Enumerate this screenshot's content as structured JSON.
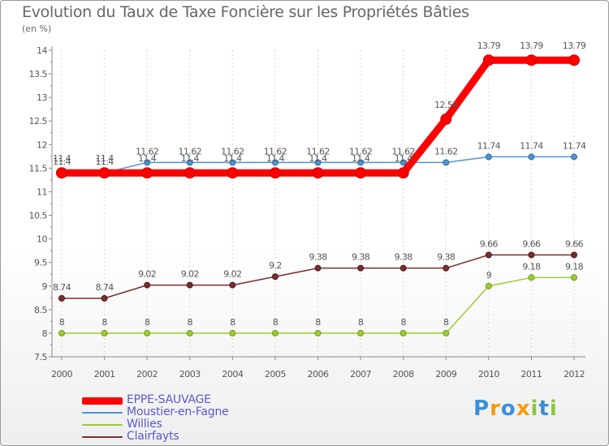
{
  "chart_data": {
    "type": "line",
    "title": "Evolution du Taux de Taxe Foncière sur les Propriétés Bâties",
    "subtitle": "(en %)",
    "xlabel": "",
    "ylabel": "",
    "ylim": [
      7.5,
      14
    ],
    "yticks": [
      "7.5",
      "8",
      "8.5",
      "9",
      "9.5",
      "10",
      "10.5",
      "11",
      "11.5",
      "12",
      "12.5",
      "13",
      "13.5",
      "14"
    ],
    "categories": [
      "2000",
      "2001",
      "2002",
      "2003",
      "2004",
      "2005",
      "2006",
      "2007",
      "2008",
      "2009",
      "2010",
      "2011",
      "2012"
    ],
    "series": [
      {
        "name": "EPPE-SAUVAGE",
        "color": "#ff0000",
        "values": [
          11.4,
          11.4,
          11.4,
          11.4,
          11.4,
          11.4,
          11.4,
          11.4,
          11.4,
          12.54,
          13.79,
          13.79,
          13.79
        ],
        "labels": [
          "11.4",
          "11.4",
          "11.4",
          "11.4",
          "11.4",
          "11.4",
          "11.4",
          "11.4",
          "11.4",
          "12.54",
          "13.79",
          "13.79",
          "13.79"
        ]
      },
      {
        "name": "Moustier-en-Fagne",
        "color": "#4f94cd",
        "values": [
          11.4,
          11.4,
          11.62,
          11.62,
          11.62,
          11.62,
          11.62,
          11.62,
          11.62,
          11.62,
          11.74,
          11.74,
          11.74
        ],
        "labels": [
          "11.4",
          "11.4",
          "11.62",
          "11.62",
          "11.62",
          "11.62",
          "11.62",
          "11.62",
          "11.62",
          "11.62",
          "11.74",
          "11.74",
          "11.74"
        ]
      },
      {
        "name": "Willies",
        "color": "#9acd32",
        "values": [
          8,
          8,
          8,
          8,
          8,
          8,
          8,
          8,
          8,
          8,
          9,
          9.18,
          9.18
        ],
        "labels": [
          "8",
          "8",
          "8",
          "8",
          "8",
          "8",
          "8",
          "8",
          "8",
          "8",
          "9",
          "9.18",
          "9.18"
        ]
      },
      {
        "name": "Clairfayts",
        "color": "#7b2d2d",
        "values": [
          8.74,
          8.74,
          9.02,
          9.02,
          9.02,
          9.2,
          9.38,
          9.38,
          9.38,
          9.38,
          9.66,
          9.66,
          9.66
        ],
        "labels": [
          "8.74",
          "8.74",
          "9.02",
          "9.02",
          "9.02",
          "9.2",
          "9.38",
          "9.38",
          "9.38",
          "9.38",
          "9.66",
          "9.66",
          "9.66"
        ]
      }
    ]
  },
  "logo": {
    "text": "Proxiti",
    "letters": [
      {
        "ch": "P",
        "color": "#3a8fd8"
      },
      {
        "ch": "r",
        "color": "#f39c12"
      },
      {
        "ch": "o",
        "color": "#3a8fd8"
      },
      {
        "ch": "x",
        "color": "#f39c12"
      },
      {
        "ch": "i",
        "color": "#8cc63f"
      },
      {
        "ch": "t",
        "color": "#3a8fd8"
      },
      {
        "ch": "i",
        "color": "#8cc63f"
      }
    ]
  }
}
